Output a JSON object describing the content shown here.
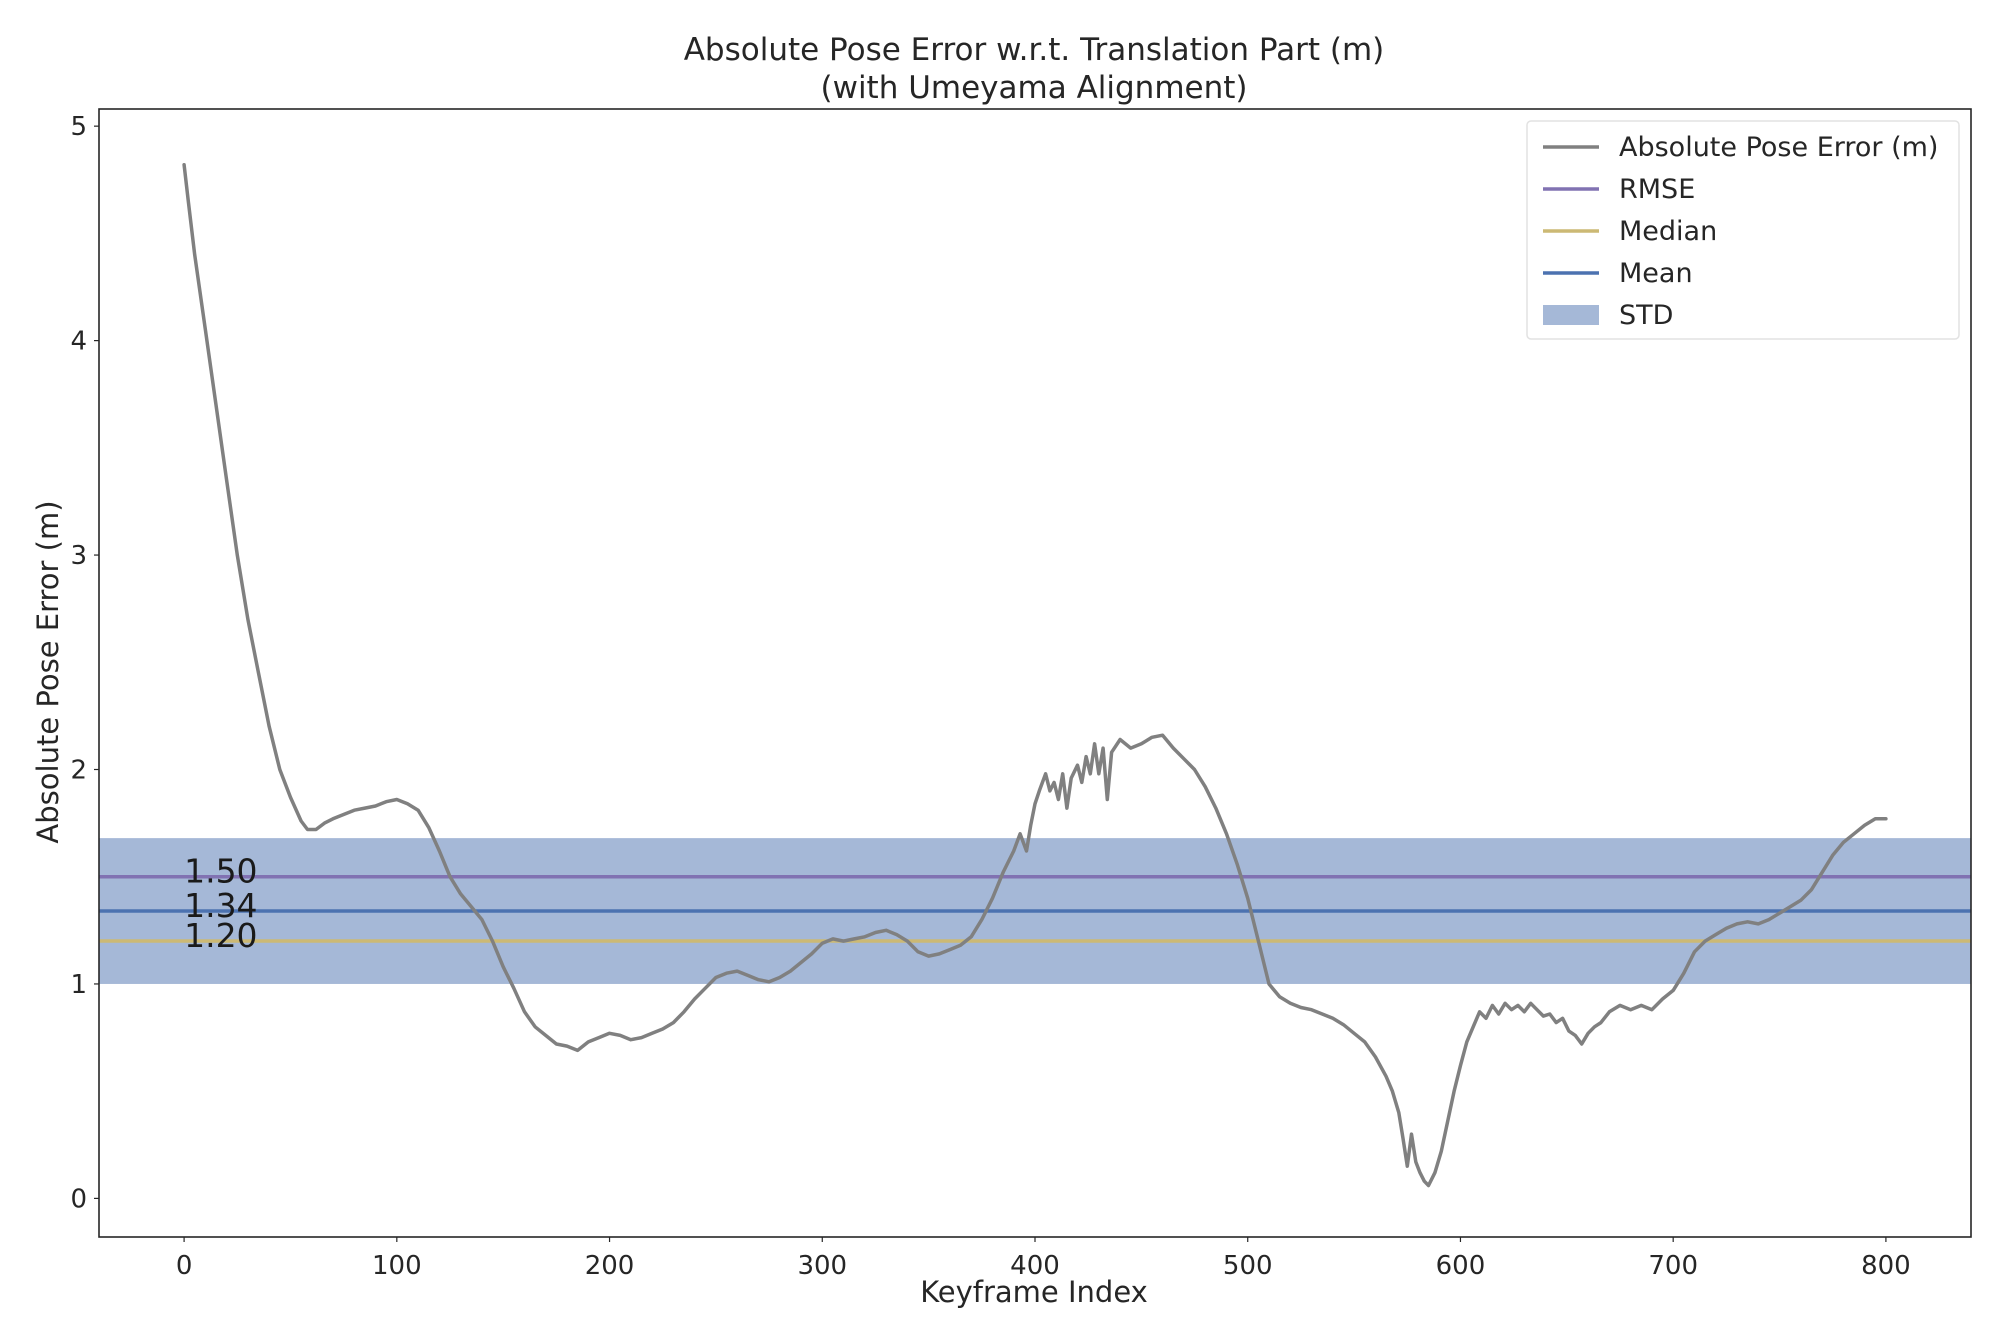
{
  "chart_data": {
    "type": "line",
    "title": "Absolute Pose Error w.r.t. Translation Part (m)",
    "subtitle": "(with Umeyama Alignment)",
    "xlabel": "Keyframe Index",
    "ylabel": "Absolute Pose Error (m)",
    "xlim": [
      -40,
      840
    ],
    "ylim": [
      -0.18,
      5.08
    ],
    "x_ticks": [
      0,
      100,
      200,
      300,
      400,
      500,
      600,
      700,
      800
    ],
    "y_ticks": [
      0,
      1,
      2,
      3,
      4,
      5
    ],
    "grid": false,
    "legend_position": "top-right",
    "series": [
      {
        "name": "Absolute Pose Error (m)",
        "color": "#808080",
        "points": [
          [
            0,
            4.82
          ],
          [
            2,
            4.65
          ],
          [
            5,
            4.4
          ],
          [
            10,
            4.05
          ],
          [
            15,
            3.7
          ],
          [
            20,
            3.35
          ],
          [
            25,
            3.0
          ],
          [
            30,
            2.7
          ],
          [
            35,
            2.45
          ],
          [
            40,
            2.2
          ],
          [
            45,
            2.0
          ],
          [
            50,
            1.87
          ],
          [
            55,
            1.76
          ],
          [
            58,
            1.72
          ],
          [
            62,
            1.72
          ],
          [
            66,
            1.75
          ],
          [
            70,
            1.77
          ],
          [
            75,
            1.79
          ],
          [
            80,
            1.81
          ],
          [
            85,
            1.82
          ],
          [
            90,
            1.83
          ],
          [
            95,
            1.85
          ],
          [
            100,
            1.86
          ],
          [
            105,
            1.84
          ],
          [
            110,
            1.81
          ],
          [
            115,
            1.73
          ],
          [
            120,
            1.62
          ],
          [
            125,
            1.5
          ],
          [
            130,
            1.42
          ],
          [
            135,
            1.36
          ],
          [
            140,
            1.3
          ],
          [
            145,
            1.2
          ],
          [
            150,
            1.08
          ],
          [
            155,
            0.98
          ],
          [
            160,
            0.87
          ],
          [
            165,
            0.8
          ],
          [
            170,
            0.76
          ],
          [
            175,
            0.72
          ],
          [
            180,
            0.71
          ],
          [
            185,
            0.69
          ],
          [
            190,
            0.73
          ],
          [
            195,
            0.75
          ],
          [
            200,
            0.77
          ],
          [
            205,
            0.76
          ],
          [
            210,
            0.74
          ],
          [
            215,
            0.75
          ],
          [
            220,
            0.77
          ],
          [
            225,
            0.79
          ],
          [
            230,
            0.82
          ],
          [
            235,
            0.87
          ],
          [
            240,
            0.93
          ],
          [
            245,
            0.98
          ],
          [
            250,
            1.03
          ],
          [
            255,
            1.05
          ],
          [
            260,
            1.06
          ],
          [
            265,
            1.04
          ],
          [
            270,
            1.02
          ],
          [
            275,
            1.01
          ],
          [
            280,
            1.03
          ],
          [
            285,
            1.06
          ],
          [
            290,
            1.1
          ],
          [
            295,
            1.14
          ],
          [
            300,
            1.19
          ],
          [
            305,
            1.21
          ],
          [
            310,
            1.2
          ],
          [
            315,
            1.21
          ],
          [
            320,
            1.22
          ],
          [
            325,
            1.24
          ],
          [
            330,
            1.25
          ],
          [
            335,
            1.23
          ],
          [
            340,
            1.2
          ],
          [
            345,
            1.15
          ],
          [
            350,
            1.13
          ],
          [
            355,
            1.14
          ],
          [
            360,
            1.16
          ],
          [
            365,
            1.18
          ],
          [
            370,
            1.22
          ],
          [
            375,
            1.3
          ],
          [
            380,
            1.4
          ],
          [
            385,
            1.52
          ],
          [
            390,
            1.62
          ],
          [
            393,
            1.7
          ],
          [
            396,
            1.62
          ],
          [
            398,
            1.74
          ],
          [
            400,
            1.84
          ],
          [
            402,
            1.9
          ],
          [
            405,
            1.98
          ],
          [
            407,
            1.9
          ],
          [
            409,
            1.94
          ],
          [
            411,
            1.86
          ],
          [
            413,
            1.98
          ],
          [
            415,
            1.82
          ],
          [
            417,
            1.96
          ],
          [
            420,
            2.02
          ],
          [
            422,
            1.94
          ],
          [
            424,
            2.06
          ],
          [
            426,
            1.98
          ],
          [
            428,
            2.12
          ],
          [
            430,
            1.98
          ],
          [
            432,
            2.1
          ],
          [
            434,
            1.86
          ],
          [
            436,
            2.08
          ],
          [
            440,
            2.14
          ],
          [
            445,
            2.1
          ],
          [
            450,
            2.12
          ],
          [
            455,
            2.15
          ],
          [
            460,
            2.16
          ],
          [
            465,
            2.1
          ],
          [
            470,
            2.05
          ],
          [
            475,
            2.0
          ],
          [
            480,
            1.92
          ],
          [
            485,
            1.82
          ],
          [
            490,
            1.7
          ],
          [
            495,
            1.56
          ],
          [
            500,
            1.4
          ],
          [
            505,
            1.2
          ],
          [
            510,
            1.0
          ],
          [
            515,
            0.94
          ],
          [
            520,
            0.91
          ],
          [
            525,
            0.89
          ],
          [
            530,
            0.88
          ],
          [
            535,
            0.86
          ],
          [
            540,
            0.84
          ],
          [
            545,
            0.81
          ],
          [
            550,
            0.77
          ],
          [
            555,
            0.73
          ],
          [
            560,
            0.66
          ],
          [
            565,
            0.57
          ],
          [
            568,
            0.5
          ],
          [
            571,
            0.4
          ],
          [
            573,
            0.28
          ],
          [
            575,
            0.15
          ],
          [
            577,
            0.3
          ],
          [
            579,
            0.17
          ],
          [
            581,
            0.12
          ],
          [
            583,
            0.08
          ],
          [
            585,
            0.06
          ],
          [
            588,
            0.12
          ],
          [
            591,
            0.22
          ],
          [
            594,
            0.36
          ],
          [
            597,
            0.5
          ],
          [
            600,
            0.62
          ],
          [
            603,
            0.73
          ],
          [
            606,
            0.8
          ],
          [
            609,
            0.87
          ],
          [
            612,
            0.84
          ],
          [
            615,
            0.9
          ],
          [
            618,
            0.86
          ],
          [
            621,
            0.91
          ],
          [
            624,
            0.88
          ],
          [
            627,
            0.9
          ],
          [
            630,
            0.87
          ],
          [
            633,
            0.91
          ],
          [
            636,
            0.88
          ],
          [
            639,
            0.85
          ],
          [
            642,
            0.86
          ],
          [
            645,
            0.82
          ],
          [
            648,
            0.84
          ],
          [
            651,
            0.78
          ],
          [
            654,
            0.76
          ],
          [
            657,
            0.72
          ],
          [
            660,
            0.77
          ],
          [
            663,
            0.8
          ],
          [
            666,
            0.82
          ],
          [
            670,
            0.87
          ],
          [
            675,
            0.9
          ],
          [
            680,
            0.88
          ],
          [
            685,
            0.9
          ],
          [
            690,
            0.88
          ],
          [
            695,
            0.93
          ],
          [
            700,
            0.97
          ],
          [
            705,
            1.05
          ],
          [
            710,
            1.15
          ],
          [
            715,
            1.2
          ],
          [
            720,
            1.23
          ],
          [
            725,
            1.26
          ],
          [
            730,
            1.28
          ],
          [
            735,
            1.29
          ],
          [
            740,
            1.28
          ],
          [
            745,
            1.3
          ],
          [
            750,
            1.33
          ],
          [
            755,
            1.36
          ],
          [
            760,
            1.39
          ],
          [
            765,
            1.44
          ],
          [
            770,
            1.52
          ],
          [
            775,
            1.6
          ],
          [
            780,
            1.66
          ],
          [
            785,
            1.7
          ],
          [
            790,
            1.74
          ],
          [
            795,
            1.77
          ],
          [
            800,
            1.77
          ]
        ]
      }
    ],
    "stats": [
      {
        "name": "RMSE",
        "value": 1.5,
        "label": "1.50",
        "color": "#8172b2"
      },
      {
        "name": "Median",
        "value": 1.2,
        "label": "1.20",
        "color": "#ccb974"
      },
      {
        "name": "Mean",
        "value": 1.34,
        "label": "1.34",
        "color": "#4c72b0"
      }
    ],
    "std_band": {
      "name": "STD",
      "low": 1.0,
      "high": 1.68,
      "color": "#4c72b0"
    },
    "legend": [
      {
        "label": "Absolute Pose Error (m)",
        "kind": "line",
        "color": "#808080"
      },
      {
        "label": "RMSE",
        "kind": "line",
        "color": "#8172b2"
      },
      {
        "label": "Median",
        "kind": "line",
        "color": "#ccb974"
      },
      {
        "label": "Mean",
        "kind": "line",
        "color": "#4c72b0"
      },
      {
        "label": "STD",
        "kind": "patch",
        "color": "#4c72b0"
      }
    ]
  }
}
